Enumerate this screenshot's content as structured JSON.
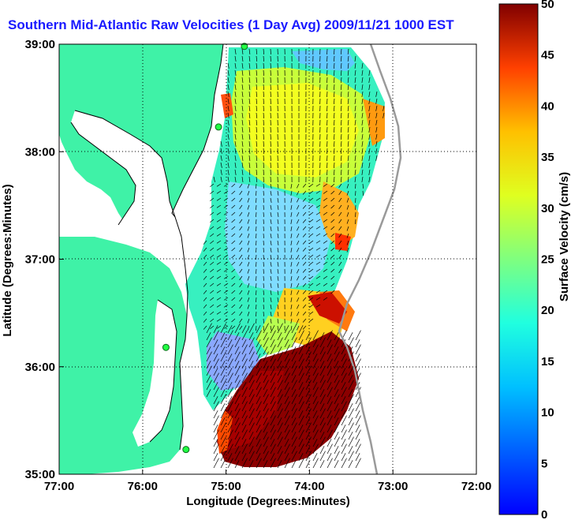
{
  "title": "Southern Mid-Atlantic Raw Velocities (1 Day Avg) 2009/11/21 1000 EST",
  "xlabel": "Longitude (Degrees:Minutes)",
  "ylabel": "Latitude (Degrees:Minutes)",
  "colorbar_label": "Surface Velocity (cm/s)",
  "x_ticks": [
    "77:00",
    "76:00",
    "75:00",
    "74:00",
    "73:00",
    "72:00"
  ],
  "y_ticks": [
    "39:00",
    "38:00",
    "37:00",
    "36:00",
    "35:00"
  ],
  "colorbar_ticks": [
    "0",
    "5",
    "10",
    "15",
    "20",
    "25",
    "30",
    "35",
    "40",
    "45",
    "50"
  ],
  "colors": {
    "land": "#3ff2a7",
    "water": "#ffffff",
    "title": "#1a1aff"
  },
  "chart_data": {
    "type": "heatmap",
    "title": "Southern Mid-Atlantic Raw Velocities (1 Day Avg) 2009/11/21 1000 EST",
    "xlabel": "Longitude (Degrees:Minutes)",
    "ylabel": "Latitude (Degrees:Minutes)",
    "xlim": [
      -77,
      -72
    ],
    "ylim": [
      35,
      39
    ],
    "colorbar": {
      "label": "Surface Velocity (cm/s)",
      "range": [
        0,
        50
      ],
      "colormap": "jet"
    },
    "grid": true,
    "radar_sites": [
      {
        "lon": -74.78,
        "lat": 38.98
      },
      {
        "lon": -75.09,
        "lat": 38.23
      },
      {
        "lon": -75.72,
        "lat": 36.18
      },
      {
        "lon": -75.48,
        "lat": 35.23
      }
    ]
  }
}
